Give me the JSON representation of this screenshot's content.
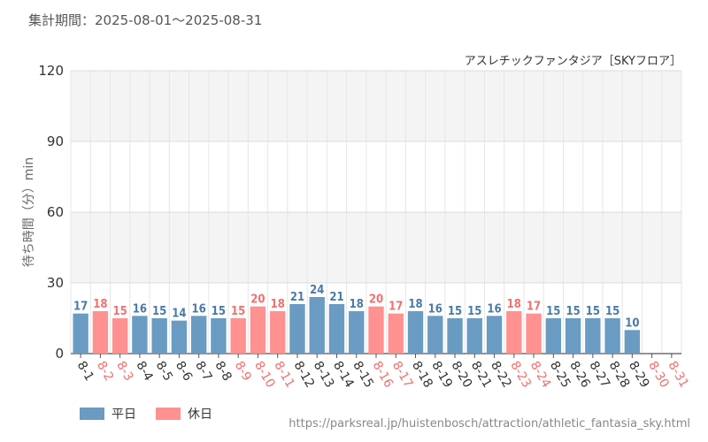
{
  "header": {
    "period": "集計期間：2025-08-01〜2025-08-31",
    "subtitle": "アスレチックファンタジア［SKYフロア］",
    "source": "https://parksreal.jp/huistenbosch/attraction/athletic_fantasia_sky.html"
  },
  "legend": {
    "weekday": "平日",
    "holiday": "休日"
  },
  "colors": {
    "weekday": "#6a9bc3",
    "holiday": "#ff9191",
    "weekday_label": "#4a7aa7",
    "holiday_label": "#f07070"
  },
  "chart_data": {
    "type": "bar",
    "title": "アスレチックファンタジア［SKYフロア］",
    "ylabel": "待ち時間（分）min",
    "xlabel": "",
    "ylim": [
      0,
      120
    ],
    "yticks": [
      0,
      30,
      60,
      90,
      120
    ],
    "grid": true,
    "legend_position": "bottom-left",
    "categories": [
      "8-1",
      "8-2",
      "8-3",
      "8-4",
      "8-5",
      "8-6",
      "8-7",
      "8-8",
      "8-9",
      "8-10",
      "8-11",
      "8-12",
      "8-13",
      "8-14",
      "8-15",
      "8-16",
      "8-17",
      "8-18",
      "8-19",
      "8-20",
      "8-21",
      "8-22",
      "8-23",
      "8-24",
      "8-25",
      "8-26",
      "8-27",
      "8-28",
      "8-29",
      "8-30",
      "8-31"
    ],
    "values": [
      17,
      18,
      15,
      16,
      15,
      14,
      16,
      15,
      15,
      20,
      18,
      21,
      24,
      21,
      18,
      20,
      17,
      18,
      16,
      15,
      15,
      16,
      18,
      17,
      15,
      15,
      15,
      15,
      10,
      null,
      null
    ],
    "day_type": [
      "weekday",
      "holiday",
      "holiday",
      "weekday",
      "weekday",
      "weekday",
      "weekday",
      "weekday",
      "holiday",
      "holiday",
      "holiday",
      "weekday",
      "weekday",
      "weekday",
      "weekday",
      "holiday",
      "holiday",
      "weekday",
      "weekday",
      "weekday",
      "weekday",
      "weekday",
      "holiday",
      "holiday",
      "weekday",
      "weekday",
      "weekday",
      "weekday",
      "weekday",
      "holiday",
      "holiday"
    ],
    "series": [
      {
        "name": "平日"
      },
      {
        "name": "休日"
      }
    ]
  }
}
